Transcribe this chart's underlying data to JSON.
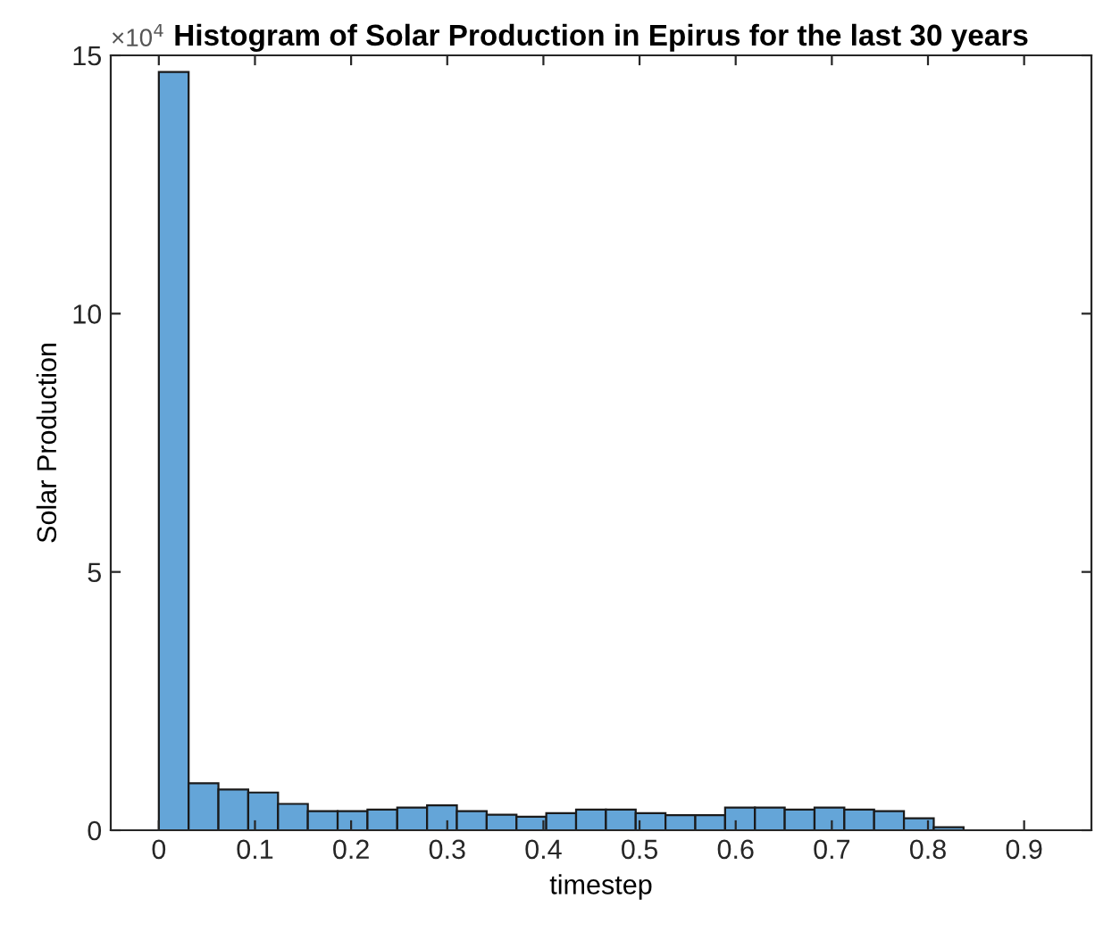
{
  "chart_data": {
    "type": "histogram",
    "title": "Histogram of Solar Production in Epirus for the last 30 years",
    "xlabel": "timestep",
    "ylabel": "Solar Production",
    "bins": [
      0,
      0.031,
      0.062,
      0.093,
      0.124,
      0.155,
      0.186,
      0.217,
      0.248,
      0.279,
      0.31,
      0.341,
      0.372,
      0.403,
      0.434,
      0.465,
      0.496,
      0.527,
      0.558,
      0.589,
      0.62,
      0.651,
      0.682,
      0.713,
      0.744,
      0.775,
      0.806,
      0.837
    ],
    "values": [
      14.68,
      0.91,
      0.79,
      0.73,
      0.51,
      0.37,
      0.37,
      0.4,
      0.44,
      0.48,
      0.37,
      0.3,
      0.26,
      0.33,
      0.4,
      0.4,
      0.33,
      0.29,
      0.29,
      0.44,
      0.44,
      0.4,
      0.44,
      0.4,
      0.37,
      0.23,
      0.06
    ],
    "color": "#64a5d8",
    "xlim": [
      -0.05,
      0.97
    ],
    "xticks": [
      0,
      0.1,
      0.2,
      0.3,
      0.4,
      0.5,
      0.6,
      0.7,
      0.8,
      0.9
    ],
    "ylim": [
      0,
      15
    ],
    "yticks": [
      0,
      5,
      10,
      15
    ],
    "annotations": [
      "×10$^{4}$"
    ],
    "grid": false
  }
}
